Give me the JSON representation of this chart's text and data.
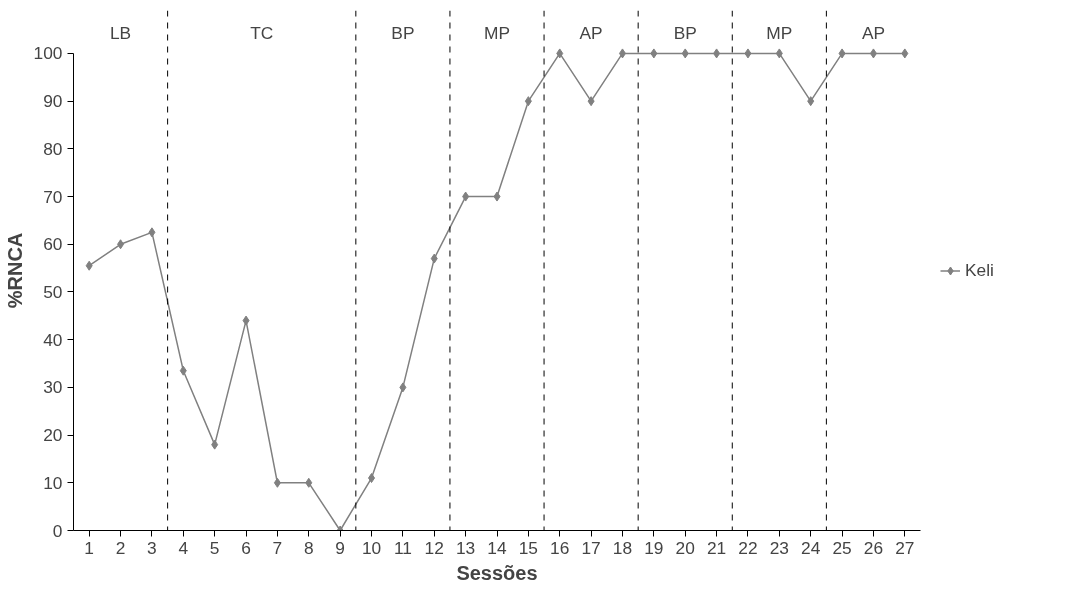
{
  "chart_data": {
    "type": "line",
    "xlabel": "Sessões",
    "ylabel": "%RNCA",
    "x": [
      1,
      2,
      3,
      4,
      5,
      6,
      7,
      8,
      9,
      10,
      11,
      12,
      13,
      14,
      15,
      16,
      17,
      18,
      19,
      20,
      21,
      22,
      23,
      24,
      25,
      26,
      27
    ],
    "series": [
      {
        "name": "Keli",
        "color": "#808080",
        "values": [
          55.5,
          60,
          62.5,
          33.5,
          18,
          44,
          10,
          10,
          0,
          11,
          30,
          57,
          70,
          70,
          90,
          100,
          90,
          100,
          100,
          100,
          100,
          100,
          100,
          90,
          100,
          100,
          100
        ]
      }
    ],
    "xlim": [
      0.5,
      27.5
    ],
    "xticks": [
      1,
      2,
      3,
      4,
      5,
      6,
      7,
      8,
      9,
      10,
      11,
      12,
      13,
      14,
      15,
      16,
      17,
      18,
      19,
      20,
      21,
      22,
      23,
      24,
      25,
      26,
      27
    ],
    "ylim": [
      0,
      100
    ],
    "yticks": [
      0,
      10,
      20,
      30,
      40,
      50,
      60,
      70,
      80,
      90,
      100
    ],
    "ref_lines": [
      {
        "axis": "x",
        "value": 3.5,
        "line_style": "dashed",
        "color": "#000000"
      },
      {
        "axis": "x",
        "value": 9.5,
        "line_style": "dashed",
        "color": "#000000"
      },
      {
        "axis": "x",
        "value": 12.5,
        "line_style": "dashed",
        "color": "#000000"
      },
      {
        "axis": "x",
        "value": 15.5,
        "line_style": "dashed",
        "color": "#000000"
      },
      {
        "axis": "x",
        "value": 18.5,
        "line_style": "dashed",
        "color": "#000000"
      },
      {
        "axis": "x",
        "value": 21.5,
        "line_style": "dashed",
        "color": "#000000"
      },
      {
        "axis": "x",
        "value": 24.5,
        "line_style": "dashed",
        "color": "#000000"
      }
    ],
    "annotations": [
      "LB",
      "TC",
      "BP",
      "MP",
      "AP",
      "BP",
      "MP",
      "AP"
    ],
    "grid": false,
    "legend": "right",
    "marker": "diamond",
    "line_style": "solid"
  }
}
